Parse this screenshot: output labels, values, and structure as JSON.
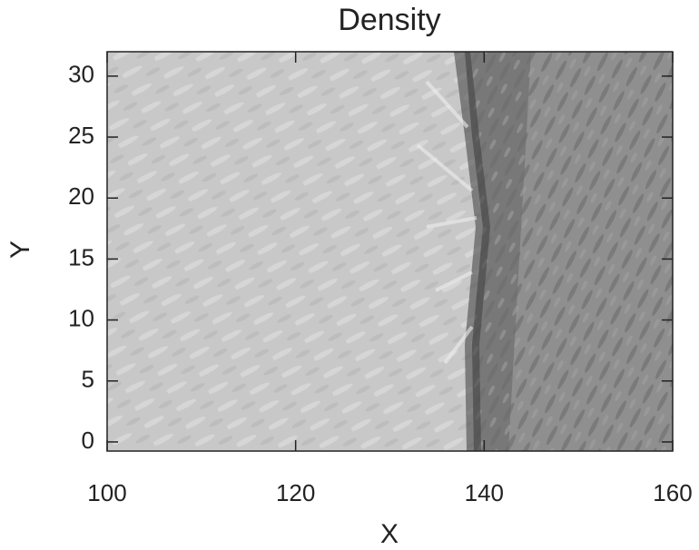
{
  "chart_data": {
    "type": "heatmap",
    "title": "Density",
    "xlabel": "X",
    "ylabel": "Y",
    "xlim": [
      100,
      160
    ],
    "ylim": [
      -0.75,
      32
    ],
    "xticks": [
      100,
      120,
      140,
      160
    ],
    "yticks": [
      0,
      5,
      10,
      15,
      20,
      25,
      30
    ]
  }
}
